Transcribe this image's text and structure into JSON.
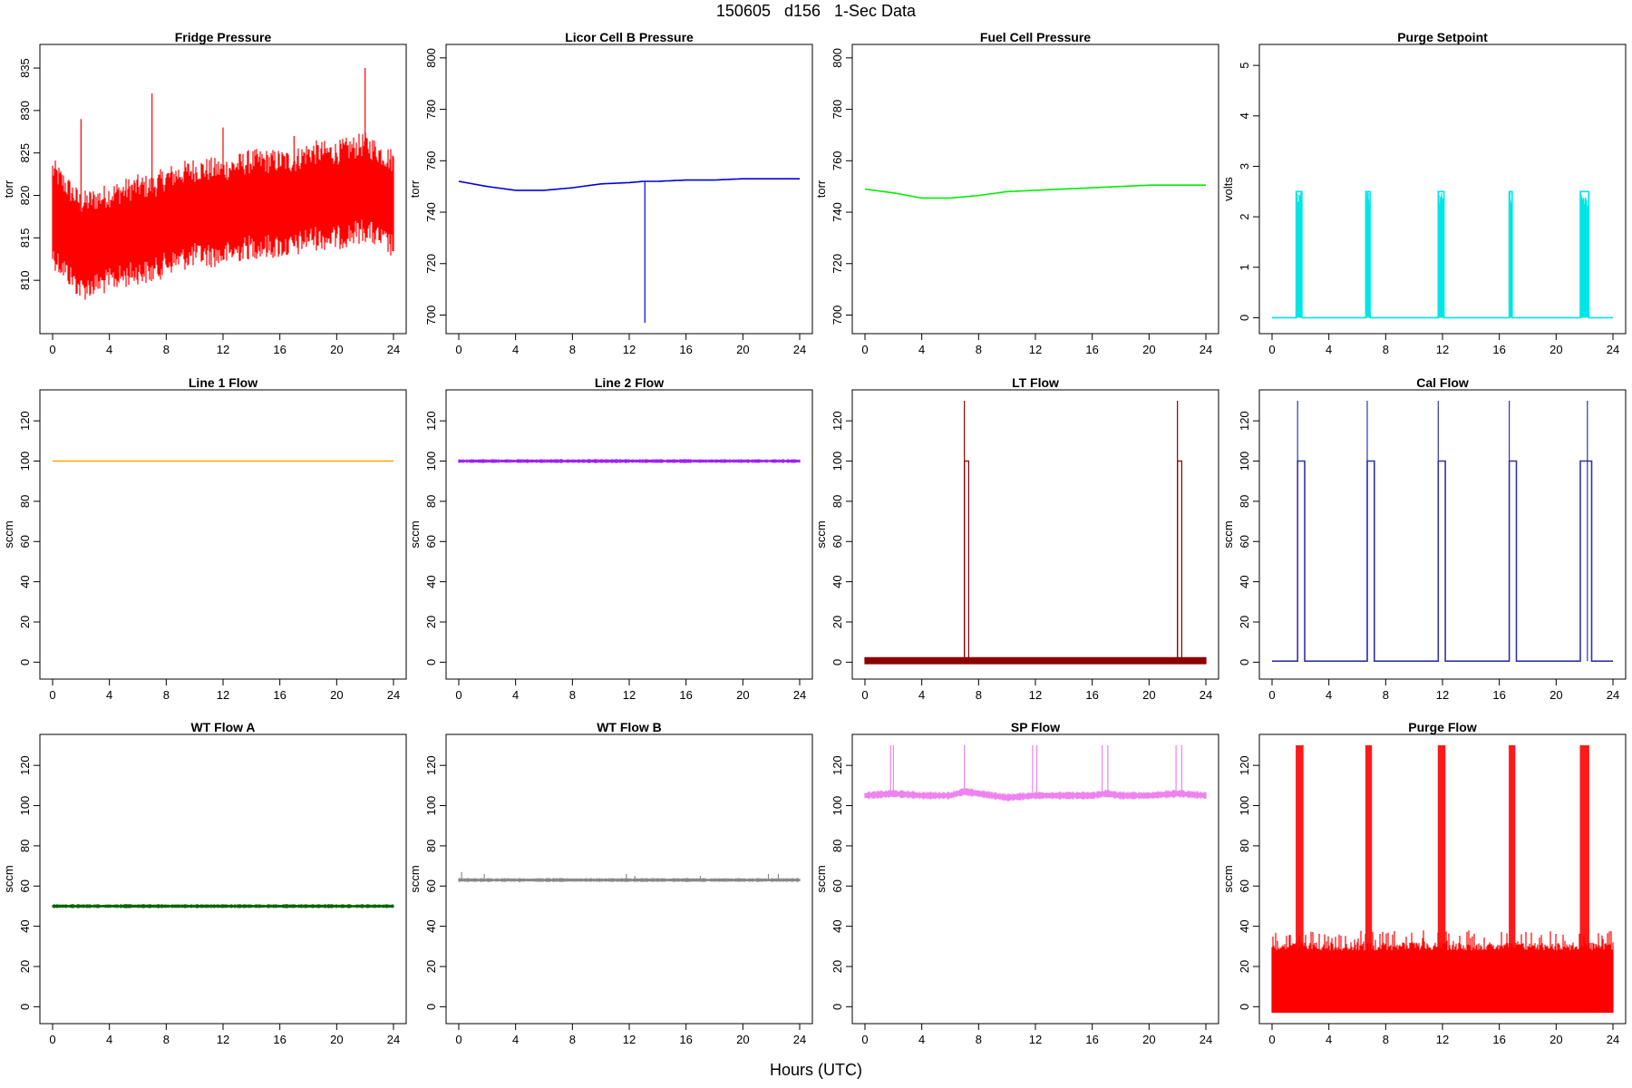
{
  "figure": {
    "title": "150605   d156   1-Sec Data",
    "xlabel": "Hours (UTC)"
  },
  "chart_data": [
    {
      "type": "line",
      "title": "Fridge Pressure",
      "ylabel": "torr",
      "xlim": [
        0,
        24
      ],
      "ylim": [
        805,
        836.5
      ],
      "xticks": [
        0,
        4,
        8,
        12,
        16,
        20,
        24
      ],
      "yticks": [
        810,
        815,
        820,
        825,
        830,
        835
      ],
      "color": "#ff0000",
      "series": [
        {
          "x": [
            0,
            2,
            4,
            6,
            7,
            8,
            10,
            12,
            14,
            16,
            17,
            18,
            20,
            22,
            24
          ],
          "y": [
            818,
            814,
            815,
            816,
            816,
            817,
            818,
            818,
            819,
            819,
            819,
            820,
            820,
            821,
            819
          ],
          "band": [
            812,
            825
          ],
          "spikes": [
            [
              2,
              829
            ],
            [
              7,
              832
            ],
            [
              12,
              828
            ],
            [
              17,
              827
            ],
            [
              22,
              835
            ]
          ]
        }
      ]
    },
    {
      "type": "line",
      "title": "Licor Cell B Pressure",
      "ylabel": "torr",
      "xlim": [
        0,
        24
      ],
      "ylim": [
        697,
        801
      ],
      "xticks": [
        0,
        4,
        8,
        12,
        16,
        20,
        24
      ],
      "yticks": [
        700,
        720,
        740,
        760,
        780,
        800
      ],
      "color": "#0000dd",
      "series": [
        {
          "x": [
            0,
            2,
            4,
            6,
            8,
            10,
            12,
            13,
            14,
            16,
            18,
            20,
            22,
            24
          ],
          "y": [
            752,
            750,
            748.5,
            748.5,
            749.5,
            751,
            751.5,
            752,
            752,
            752.5,
            752.5,
            753,
            753,
            753
          ],
          "spikes": [
            [
              13.1,
              697
            ]
          ]
        }
      ]
    },
    {
      "type": "line",
      "title": "Fuel Cell Pressure",
      "ylabel": "torr",
      "xlim": [
        0,
        24
      ],
      "ylim": [
        697,
        801
      ],
      "xticks": [
        0,
        4,
        8,
        12,
        16,
        20,
        24
      ],
      "yticks": [
        700,
        720,
        740,
        760,
        780,
        800
      ],
      "color": "#00ee00",
      "series": [
        {
          "x": [
            0,
            2,
            4,
            6,
            8,
            10,
            12,
            14,
            16,
            18,
            20,
            22,
            24
          ],
          "y": [
            749,
            747.5,
            745.5,
            745.5,
            746.5,
            748,
            748.5,
            749,
            749.5,
            750,
            750.5,
            750.5,
            750.5
          ]
        }
      ]
    },
    {
      "type": "line",
      "title": "Purge Setpoint",
      "ylabel": "volts",
      "xlim": [
        0,
        24
      ],
      "ylim": [
        -0.1,
        5.2
      ],
      "xticks": [
        0,
        4,
        8,
        12,
        16,
        20,
        24
      ],
      "yticks": [
        0,
        1,
        2,
        3,
        4,
        5
      ],
      "color": "#00e5e5",
      "series": [
        {
          "baseline": 0,
          "pulses": [
            [
              1.7,
              2.1,
              2.5
            ],
            [
              6.6,
              6.9,
              2.5
            ],
            [
              11.7,
              12.1,
              2.5
            ],
            [
              16.7,
              16.9,
              2.5
            ],
            [
              21.7,
              22.3,
              2.5
            ]
          ]
        }
      ]
    },
    {
      "type": "line",
      "title": "Line 1 Flow",
      "ylabel": "sccm",
      "xlim": [
        0,
        24
      ],
      "ylim": [
        -3,
        130
      ],
      "xticks": [
        0,
        4,
        8,
        12,
        16,
        20,
        24
      ],
      "yticks": [
        0,
        20,
        40,
        60,
        80,
        100,
        120
      ],
      "color": "#ffa500",
      "series": [
        {
          "x": [
            0,
            24
          ],
          "y": [
            100,
            100
          ]
        }
      ]
    },
    {
      "type": "line",
      "title": "Line 2 Flow",
      "ylabel": "sccm",
      "xlim": [
        0,
        24
      ],
      "ylim": [
        -3,
        130
      ],
      "xticks": [
        0,
        4,
        8,
        12,
        16,
        20,
        24
      ],
      "yticks": [
        0,
        20,
        40,
        60,
        80,
        100,
        120
      ],
      "color": "#a020f0",
      "series": [
        {
          "x": [
            0,
            24
          ],
          "y": [
            100,
            100
          ],
          "band": [
            99,
            101
          ]
        }
      ]
    },
    {
      "type": "line",
      "title": "LT Flow",
      "ylabel": "sccm",
      "xlim": [
        0,
        24
      ],
      "ylim": [
        -3,
        130
      ],
      "xticks": [
        0,
        4,
        8,
        12,
        16,
        20,
        24
      ],
      "yticks": [
        0,
        20,
        40,
        60,
        80,
        100,
        120
      ],
      "color": "#8b0000",
      "series": [
        {
          "baseline": 1,
          "band": [
            -1,
            2.5
          ],
          "pulses": [
            [
              7.0,
              7.3,
              100
            ],
            [
              22.0,
              22.3,
              100
            ]
          ],
          "spikes": [
            [
              7.0,
              130
            ],
            [
              22.0,
              130
            ]
          ]
        }
      ]
    },
    {
      "type": "line",
      "title": "Cal Flow",
      "ylabel": "sccm",
      "xlim": [
        0,
        24
      ],
      "ylim": [
        -3,
        130
      ],
      "xticks": [
        0,
        4,
        8,
        12,
        16,
        20,
        24
      ],
      "yticks": [
        0,
        20,
        40,
        60,
        80,
        100,
        120
      ],
      "color": "#3333aa",
      "series": [
        {
          "baseline": 0.5,
          "pulses": [
            [
              1.8,
              2.3,
              100
            ],
            [
              6.7,
              7.2,
              100
            ],
            [
              11.7,
              12.2,
              100
            ],
            [
              16.7,
              17.2,
              100
            ],
            [
              21.7,
              22.5,
              100
            ]
          ],
          "spikes": [
            [
              1.8,
              130
            ],
            [
              6.7,
              130
            ],
            [
              11.7,
              130
            ],
            [
              16.7,
              130
            ],
            [
              22.2,
              130
            ]
          ]
        }
      ]
    },
    {
      "type": "line",
      "title": "WT Flow A",
      "ylabel": "sccm",
      "xlim": [
        0,
        24
      ],
      "ylim": [
        -3,
        130
      ],
      "xticks": [
        0,
        4,
        8,
        12,
        16,
        20,
        24
      ],
      "yticks": [
        0,
        20,
        40,
        60,
        80,
        100,
        120
      ],
      "color": "#006400",
      "series": [
        {
          "x": [
            0,
            24
          ],
          "y": [
            50,
            50
          ],
          "band": [
            49,
            51
          ]
        }
      ]
    },
    {
      "type": "line",
      "title": "WT Flow B",
      "ylabel": "sccm",
      "xlim": [
        0,
        24
      ],
      "ylim": [
        -3,
        130
      ],
      "xticks": [
        0,
        4,
        8,
        12,
        16,
        20,
        24
      ],
      "yticks": [
        0,
        20,
        40,
        60,
        80,
        100,
        120
      ],
      "color": "#888888",
      "series": [
        {
          "x": [
            0,
            24
          ],
          "y": [
            63,
            63
          ],
          "band": [
            62,
            64
          ],
          "spikes": [
            [
              0.2,
              67
            ],
            [
              1.8,
              66
            ],
            [
              3.5,
              64
            ],
            [
              6.9,
              64
            ],
            [
              11.8,
              66
            ],
            [
              12.4,
              65
            ],
            [
              17,
              65
            ],
            [
              21.8,
              66
            ],
            [
              22.5,
              66
            ]
          ]
        }
      ]
    },
    {
      "type": "line",
      "title": "SP Flow",
      "ylabel": "sccm",
      "xlim": [
        0,
        24
      ],
      "ylim": [
        -3,
        130
      ],
      "xticks": [
        0,
        4,
        8,
        12,
        16,
        20,
        24
      ],
      "yticks": [
        0,
        20,
        40,
        60,
        80,
        100,
        120
      ],
      "color": "#ee82ee",
      "series": [
        {
          "x": [
            0,
            2,
            4,
            6,
            7,
            8,
            10,
            12,
            14,
            16,
            17,
            18,
            20,
            22,
            24
          ],
          "y": [
            105,
            106,
            105,
            105,
            107,
            106,
            104,
            105,
            105,
            105,
            106,
            105,
            105,
            106,
            105
          ],
          "band": [
            103,
            107
          ],
          "spikes": [
            [
              1.8,
              130
            ],
            [
              2.0,
              130
            ],
            [
              7.0,
              130
            ],
            [
              11.8,
              130
            ],
            [
              12.1,
              130
            ],
            [
              16.7,
              130
            ],
            [
              17.1,
              130
            ],
            [
              21.9,
              130
            ],
            [
              22.3,
              130
            ]
          ]
        }
      ]
    },
    {
      "type": "line",
      "title": "Purge Flow",
      "ylabel": "sccm",
      "xlim": [
        0,
        24
      ],
      "ylim": [
        -3,
        130
      ],
      "xticks": [
        0,
        4,
        8,
        12,
        16,
        20,
        24
      ],
      "yticks": [
        0,
        20,
        40,
        60,
        80,
        100,
        120
      ],
      "color": "#ff0000",
      "series": [
        {
          "band": [
            -3,
            32
          ],
          "noise_peaks": 38,
          "pulses": [
            [
              1.7,
              2.2,
              130
            ],
            [
              6.6,
              7.0,
              130
            ],
            [
              11.7,
              12.2,
              130
            ],
            [
              16.7,
              17.1,
              130
            ],
            [
              21.7,
              22.3,
              130
            ]
          ]
        }
      ]
    }
  ]
}
